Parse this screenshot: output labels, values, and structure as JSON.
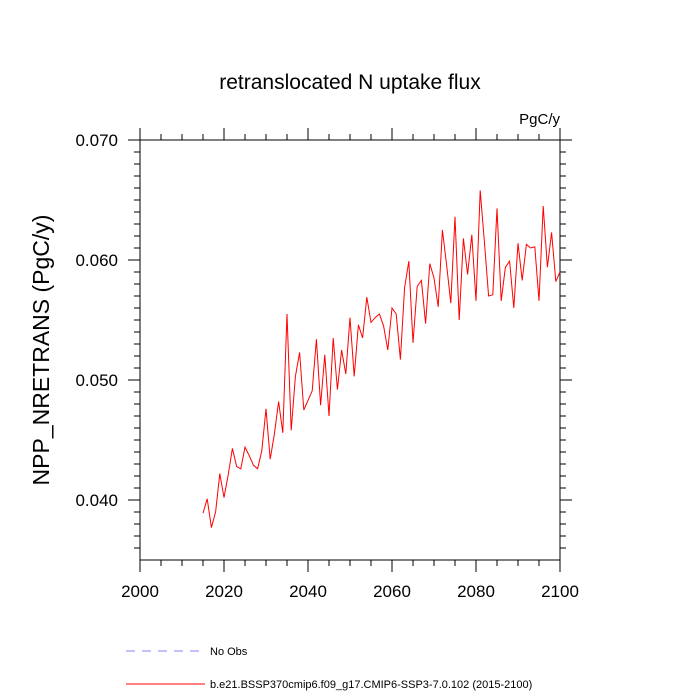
{
  "chart_data": {
    "type": "line",
    "title": "retranslocated N uptake flux",
    "units": "PgC/y",
    "xlabel": "",
    "ylabel": "NPP_NRETRANS  (PgC/y)",
    "xlim": [
      2000,
      2100
    ],
    "ylim": [
      0.035,
      0.07
    ],
    "x_ticks": [
      {
        "value": 2000,
        "label": "2000"
      },
      {
        "value": 2020,
        "label": "2020"
      },
      {
        "value": 2040,
        "label": "2040"
      },
      {
        "value": 2060,
        "label": "2060"
      },
      {
        "value": 2080,
        "label": "2080"
      },
      {
        "value": 2100,
        "label": "2100"
      }
    ],
    "y_ticks": [
      {
        "value": 0.04,
        "label": "0.040"
      },
      {
        "value": 0.05,
        "label": "0.050"
      },
      {
        "value": 0.06,
        "label": "0.060"
      },
      {
        "value": 0.07,
        "label": "0.070"
      }
    ],
    "grid": false,
    "legend_position": "bottom-left below plot",
    "legend": [
      {
        "label": "No Obs",
        "color": "#8080ff",
        "style": "dashed"
      },
      {
        "label": "b.e21.BSSP370cmip6.f09_g17.CMIP6-SSP3-7.0.102 (2015-2100)",
        "color": "#ff0000",
        "style": "solid"
      }
    ],
    "series": [
      {
        "name": "b.e21.BSSP370cmip6.f09_g17.CMIP6-SSP3-7.0.102 (2015-2100)",
        "color": "#ff0000",
        "x": [
          2015,
          2016,
          2017,
          2018,
          2019,
          2020,
          2021,
          2022,
          2023,
          2024,
          2025,
          2026,
          2027,
          2028,
          2029,
          2030,
          2031,
          2032,
          2033,
          2034,
          2035,
          2036,
          2037,
          2038,
          2039,
          2040,
          2041,
          2042,
          2043,
          2044,
          2045,
          2046,
          2047,
          2048,
          2049,
          2050,
          2051,
          2052,
          2053,
          2054,
          2055,
          2056,
          2057,
          2058,
          2059,
          2060,
          2061,
          2062,
          2063,
          2064,
          2065,
          2066,
          2067,
          2068,
          2069,
          2070,
          2071,
          2072,
          2073,
          2074,
          2075,
          2076,
          2077,
          2078,
          2079,
          2080,
          2081,
          2082,
          2083,
          2084,
          2085,
          2086,
          2087,
          2088,
          2089,
          2090,
          2091,
          2092,
          2093,
          2094,
          2095,
          2096,
          2097,
          2098,
          2099,
          2100
        ],
        "y": [
          0.0389,
          0.0401,
          0.0377,
          0.039,
          0.0422,
          0.0402,
          0.0421,
          0.0443,
          0.0428,
          0.0426,
          0.0444,
          0.0437,
          0.0429,
          0.0426,
          0.0441,
          0.0476,
          0.0434,
          0.0455,
          0.0482,
          0.0456,
          0.0555,
          0.0458,
          0.0503,
          0.0523,
          0.0475,
          0.0483,
          0.0491,
          0.0534,
          0.0479,
          0.0521,
          0.047,
          0.0535,
          0.0492,
          0.0525,
          0.0505,
          0.0552,
          0.0503,
          0.0546,
          0.0535,
          0.0569,
          0.0548,
          0.0552,
          0.0555,
          0.0545,
          0.0525,
          0.056,
          0.0555,
          0.0517,
          0.0577,
          0.0599,
          0.0531,
          0.0578,
          0.0583,
          0.0547,
          0.0597,
          0.0585,
          0.0561,
          0.0625,
          0.0596,
          0.0564,
          0.0636,
          0.055,
          0.0618,
          0.0588,
          0.0621,
          0.0566,
          0.0658,
          0.0615,
          0.057,
          0.0571,
          0.0643,
          0.0566,
          0.0594,
          0.0599,
          0.056,
          0.0614,
          0.0583,
          0.0613,
          0.061,
          0.0611,
          0.0566,
          0.0645,
          0.0594,
          0.0623,
          0.0582,
          0.059
        ]
      }
    ]
  }
}
